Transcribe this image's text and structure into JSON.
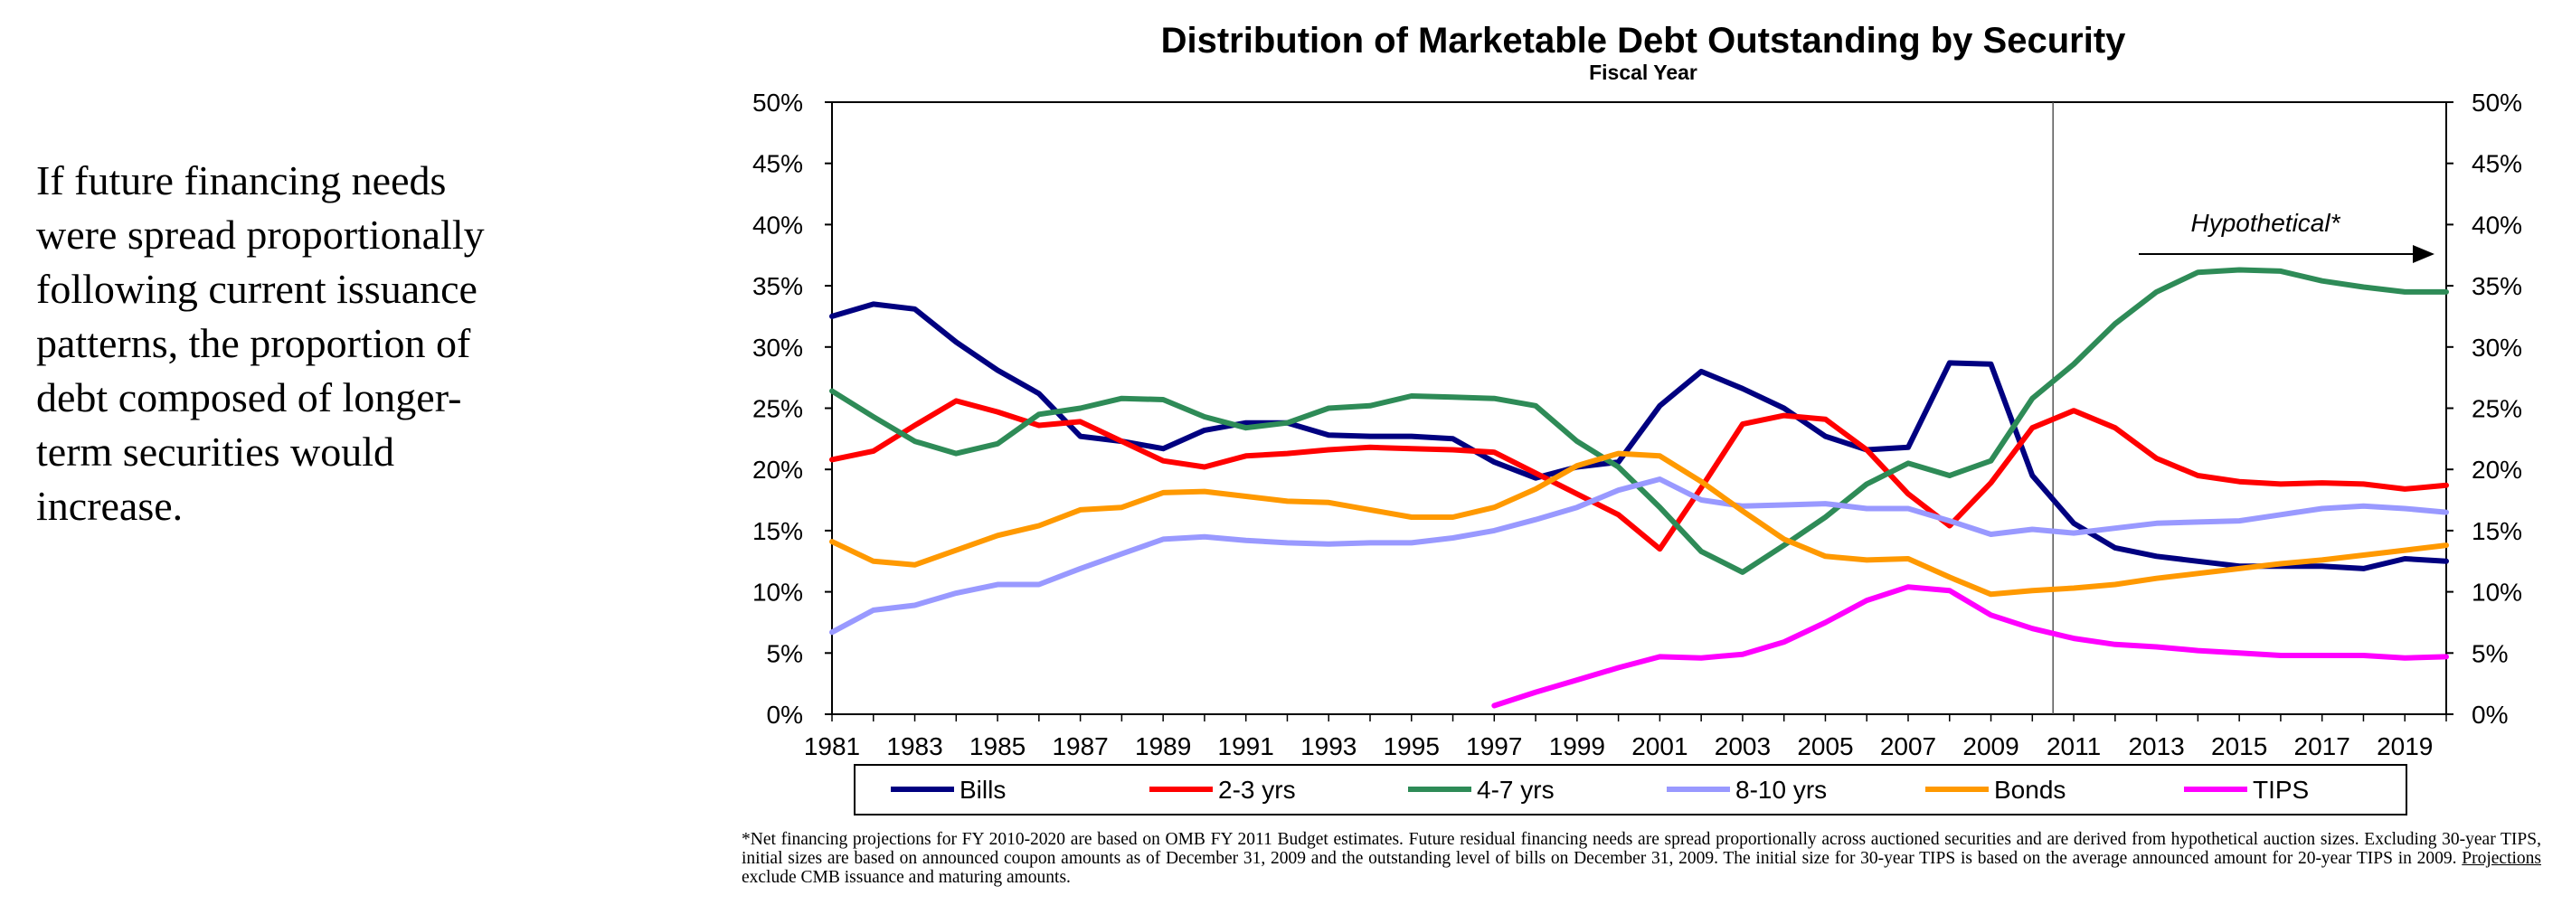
{
  "side_note": "If future financing needs\nwere spread proportionally\nfollowing current issuance\npatterns, the proportion of\ndebt composed of longer-\nterm securities would\nincrease.",
  "footnote": {
    "before": "*Net financing projections for FY 2010-2020 are based on OMB FY 2011 Budget estimates. Future residual financing needs are spread proportionally across auctioned securities and are derived from hypothetical auction sizes. Excluding 30-year TIPS, initial sizes are based on announced coupon amounts as of December 31, 2009 and the outstanding level of bills on December 31, 2009. The initial size for 30-year TIPS is based on the average announced amount for 20-year TIPS in 2009. ",
    "underlined": "Projections",
    "after": " exclude CMB issuance and maturing amounts."
  },
  "chart_data": {
    "type": "line",
    "title": "Distribution of Marketable Debt Outstanding by Security",
    "subtitle": "Fiscal Year",
    "xlim": [
      1981,
      2020
    ],
    "ylim": [
      0,
      50
    ],
    "y_ticks": [
      0,
      5,
      10,
      15,
      20,
      25,
      30,
      35,
      40,
      45,
      50
    ],
    "y_tick_labels": [
      "0%",
      "5%",
      "10%",
      "15%",
      "20%",
      "25%",
      "30%",
      "35%",
      "40%",
      "45%",
      "50%"
    ],
    "x_ticks": [
      1981,
      1983,
      1985,
      1987,
      1989,
      1991,
      1993,
      1995,
      1997,
      1999,
      2001,
      2003,
      2005,
      2007,
      2009,
      2011,
      2013,
      2015,
      2017,
      2019
    ],
    "x_tick_labels": [
      "1981",
      "1983",
      "1985",
      "1987",
      "1989",
      "1991",
      "1993",
      "1995",
      "1997",
      "1999",
      "2001",
      "2003",
      "2005",
      "2007",
      "2009",
      "2011",
      "2013",
      "2015",
      "2017",
      "2019"
    ],
    "grid": false,
    "secondary_y_axis": true,
    "legend_position": "bottom",
    "projection_start": 2010.5,
    "annotation": "Hypothetical*",
    "x": [
      1981,
      1982,
      1983,
      1984,
      1985,
      1986,
      1987,
      1988,
      1989,
      1990,
      1991,
      1992,
      1993,
      1994,
      1995,
      1996,
      1997,
      1998,
      1999,
      2000,
      2001,
      2002,
      2003,
      2004,
      2005,
      2006,
      2007,
      2008,
      2009,
      2010,
      2011,
      2012,
      2013,
      2014,
      2015,
      2016,
      2017,
      2018,
      2019,
      2020
    ],
    "series": [
      {
        "name": "Bills",
        "color": "#000080",
        "values": [
          32.5,
          33.5,
          33.1,
          30.4,
          28.1,
          26.2,
          22.7,
          22.3,
          21.7,
          23.2,
          23.8,
          23.8,
          22.8,
          22.7,
          22.7,
          22.5,
          20.6,
          19.3,
          20.2,
          20.6,
          25.2,
          28.0,
          26.6,
          25.0,
          22.7,
          21.6,
          21.8,
          28.7,
          28.6,
          19.5,
          15.6,
          13.6,
          12.9,
          12.5,
          12.1,
          12.1,
          12.1,
          11.9,
          12.7,
          12.5
        ]
      },
      {
        "name": "2-3 yrs",
        "color": "#ff0000",
        "values": [
          20.8,
          21.5,
          23.6,
          25.6,
          24.7,
          23.6,
          23.9,
          22.3,
          20.7,
          20.2,
          21.1,
          21.3,
          21.6,
          21.8,
          21.7,
          21.6,
          21.4,
          19.7,
          18.0,
          16.3,
          13.5,
          18.5,
          23.7,
          24.4,
          24.1,
          21.6,
          18.0,
          15.4,
          18.9,
          23.4,
          24.8,
          23.4,
          20.9,
          19.5,
          19.0,
          18.8,
          18.9,
          18.8,
          18.4,
          18.7
        ]
      },
      {
        "name": "4-7 yrs",
        "color": "#2e8b57",
        "values": [
          26.4,
          24.3,
          22.3,
          21.3,
          22.1,
          24.5,
          25.0,
          25.8,
          25.7,
          24.3,
          23.4,
          23.8,
          25.0,
          25.2,
          26.0,
          25.9,
          25.8,
          25.2,
          22.3,
          20.2,
          16.9,
          13.3,
          11.6,
          13.8,
          16.1,
          18.8,
          20.5,
          19.5,
          20.7,
          25.8,
          28.6,
          31.9,
          34.5,
          36.1,
          36.3,
          36.2,
          35.4,
          34.9,
          34.5,
          34.5
        ]
      },
      {
        "name": "8-10 yrs",
        "color": "#9999ff",
        "values": [
          6.7,
          8.5,
          8.9,
          9.9,
          10.6,
          10.6,
          11.9,
          13.1,
          14.3,
          14.5,
          14.2,
          14.0,
          13.9,
          14.0,
          14.0,
          14.4,
          15.0,
          15.9,
          16.9,
          18.3,
          19.2,
          17.5,
          17.0,
          17.1,
          17.2,
          16.8,
          16.8,
          15.8,
          14.7,
          15.1,
          14.8,
          15.2,
          15.6,
          15.7,
          15.8,
          16.3,
          16.8,
          17.0,
          16.8,
          16.5
        ]
      },
      {
        "name": "Bonds",
        "color": "#ff9900",
        "values": [
          14.1,
          12.5,
          12.2,
          13.4,
          14.6,
          15.4,
          16.7,
          16.9,
          18.1,
          18.2,
          17.8,
          17.4,
          17.3,
          16.7,
          16.1,
          16.1,
          16.9,
          18.4,
          20.3,
          21.3,
          21.1,
          19.0,
          16.6,
          14.3,
          12.9,
          12.6,
          12.7,
          11.2,
          9.8,
          10.1,
          10.3,
          10.6,
          11.1,
          11.5,
          11.9,
          12.3,
          12.6,
          13.0,
          13.4,
          13.8
        ]
      },
      {
        "name": "TIPS",
        "color": "#ff00ff",
        "values": [
          null,
          null,
          null,
          null,
          null,
          null,
          null,
          null,
          null,
          null,
          null,
          null,
          null,
          null,
          null,
          null,
          0.7,
          1.8,
          2.8,
          3.8,
          4.7,
          4.6,
          4.9,
          5.9,
          7.5,
          9.3,
          10.4,
          10.1,
          8.1,
          7.0,
          6.2,
          5.7,
          5.5,
          5.2,
          5.0,
          4.8,
          4.8,
          4.8,
          4.6,
          4.7
        ]
      }
    ]
  }
}
